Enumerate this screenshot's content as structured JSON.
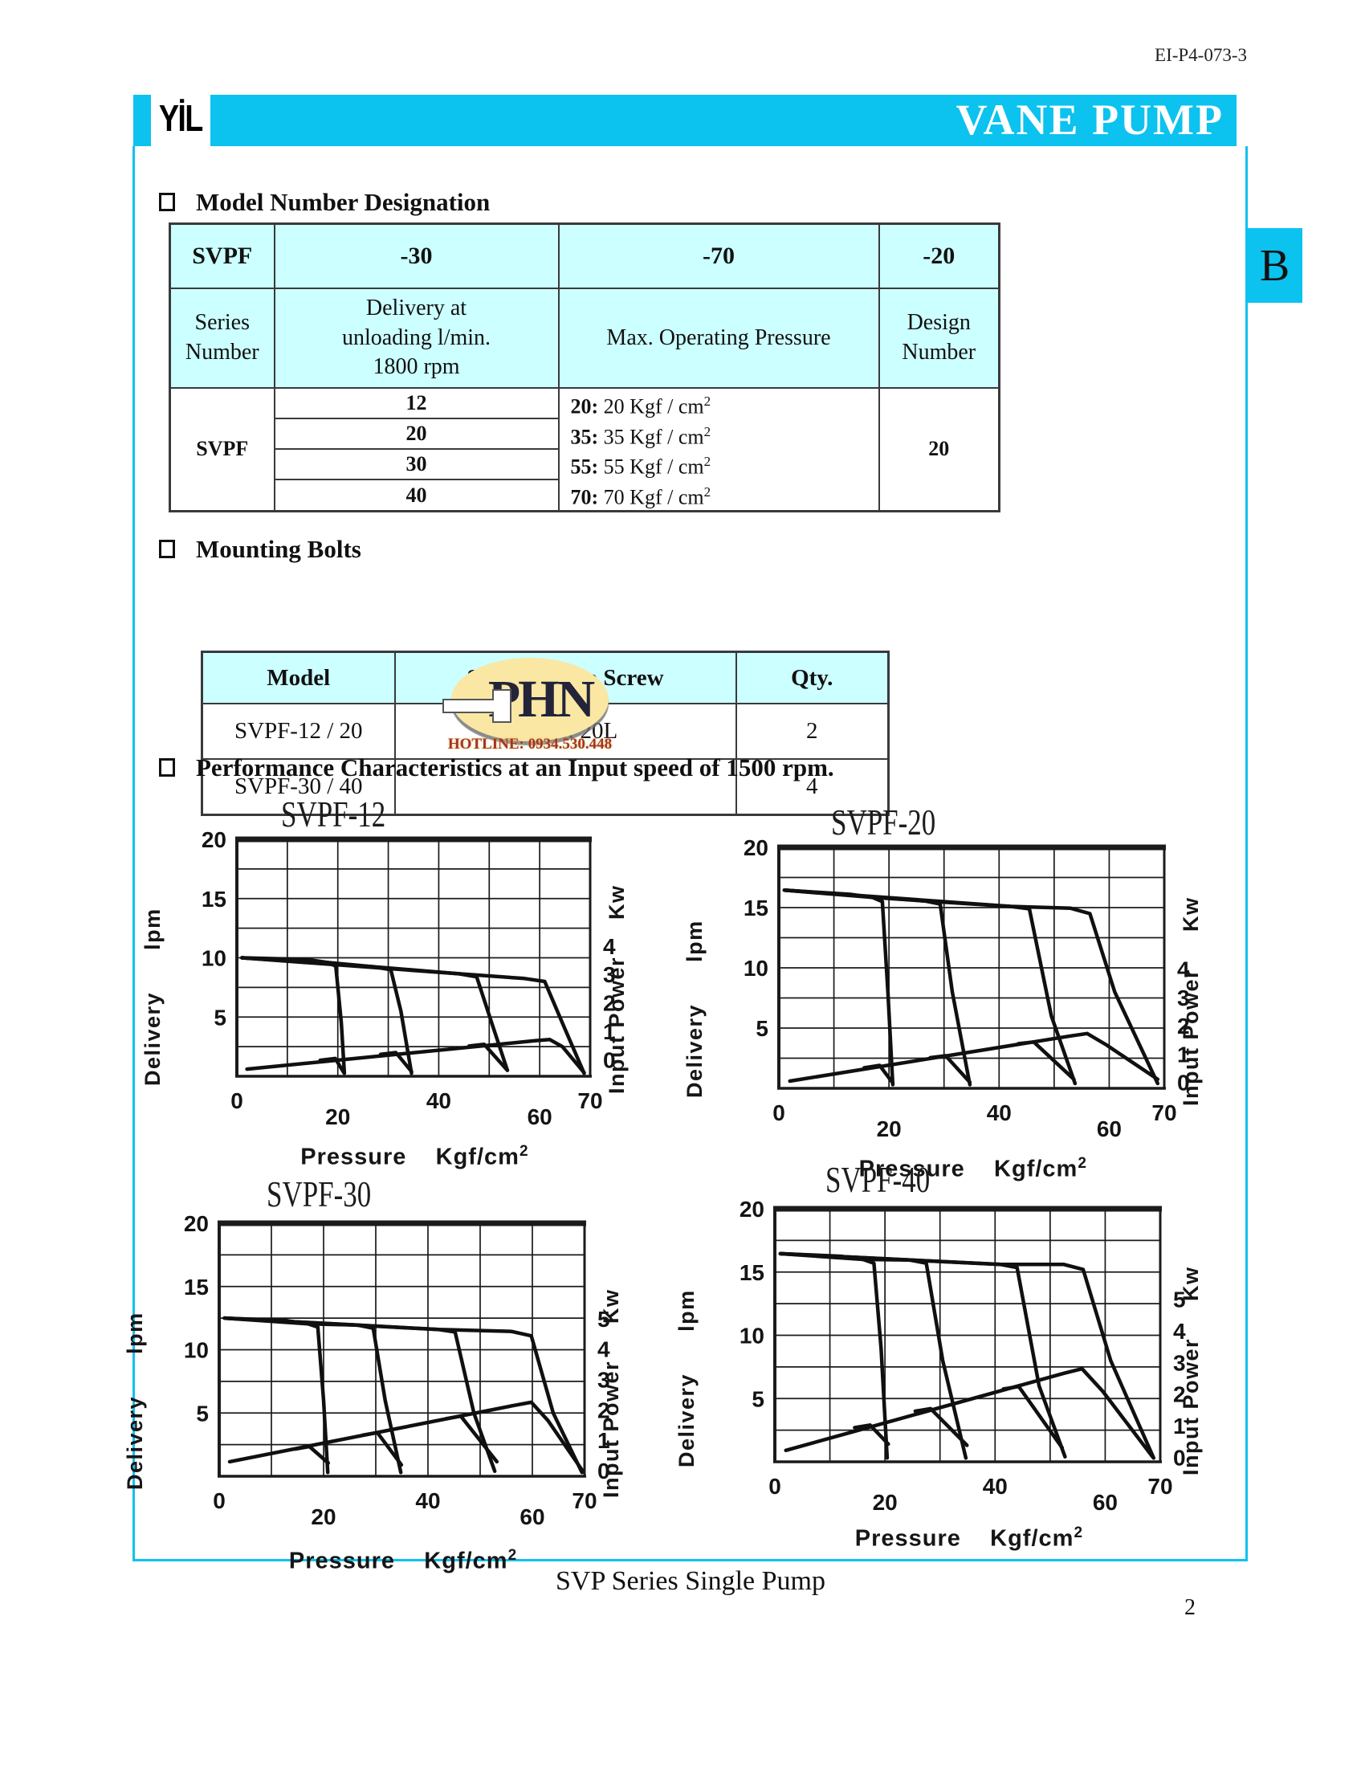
{
  "page": {
    "doc_number": "EI-P4-073-3",
    "banner_title": "VANE PUMP",
    "logo_text": "YİL",
    "tab_label": "B",
    "footer_title": "SVP Series Single Pump",
    "page_number": "2"
  },
  "colors": {
    "accent_cyan": "#0cc2ee",
    "table_header_bg": "#ccffff",
    "watermark_fill": "#f9e7a3",
    "watermark_text": "#23233a",
    "hotline_red": "#a33327"
  },
  "sections": {
    "model_heading": "Model Number Designation",
    "bolts_heading": "Mounting Bolts",
    "performance_heading": "Performance Characteristics at an Input speed of 1500 rpm."
  },
  "model_table": {
    "header_row": {
      "c0": "SVPF",
      "c1": "-30",
      "c2": "-70",
      "c3": "-20"
    },
    "label_row": {
      "c0_l1": "Series",
      "c0_l2": "Number",
      "c1_l1": "Delivery at",
      "c1_l2": "unloading l/min.",
      "c1_l3": "1800 rpm",
      "c2": "Max. Operating Pressure",
      "c3_l1": "Design",
      "c3_l2": "Number"
    },
    "series_label": "SVPF",
    "deliveries": [
      "12",
      "20",
      "30",
      "40"
    ],
    "pressures": [
      {
        "bold": "20:",
        "rest": " 20 Kgf / cm",
        "sup": "2"
      },
      {
        "bold": "35:",
        "rest": " 35 Kgf / cm",
        "sup": "2"
      },
      {
        "bold": "55:",
        "rest": " 55 Kgf / cm",
        "sup": "2"
      },
      {
        "bold": "70:",
        "rest": " 70 Kgf / cm",
        "sup": "2"
      }
    ],
    "design_number": "20"
  },
  "bolt_table": {
    "headers": [
      "Model",
      "Soc. Hd. Cap Screw",
      "Qty."
    ],
    "rows": [
      [
        "SVPF-12 / 20",
        "M10 x 20L",
        "2"
      ],
      [
        "SVPF-30 / 40",
        "",
        "4"
      ]
    ]
  },
  "watermark": {
    "text": "PHN",
    "hotline": "HOTLINE: 0934.530.448"
  },
  "chart_data": [
    {
      "type": "line",
      "title": "SVPF-12",
      "xlabel": "Pressure",
      "xlabel_unit": "Kgf/cm",
      "xlabel_sup": "2",
      "ylabel_left": "Delivery",
      "ylabel_left_unit": "lpm",
      "ylabel_right": "Input Power",
      "ylabel_right_unit": "Kw",
      "xlim": [
        0,
        70
      ],
      "ylim": [
        0,
        20
      ],
      "grid_x": 10,
      "grid_y": 2.5,
      "xticks": [
        {
          "v": 0
        },
        {
          "v": 20,
          "stagger": 1
        },
        {
          "v": 40
        },
        {
          "v": 60,
          "stagger": 1
        },
        {
          "v": 70
        }
      ],
      "yticks_left": [
        5,
        10,
        15,
        20
      ],
      "right_axis": {
        "unit": "Kw",
        "ticks": [
          4,
          3,
          2,
          1,
          0
        ],
        "base_lpm": 1.4,
        "lpm_per_unit": 2.4
      },
      "delivery_curves": [
        {
          "name": "rated-20",
          "points": [
            [
              1,
              10
            ],
            [
              14,
              9.85
            ],
            [
              18,
              9.6
            ],
            [
              19.6,
              9.3
            ],
            [
              20.7,
              4.5
            ],
            [
              21.3,
              0.25
            ]
          ]
        },
        {
          "name": "rated-35",
          "points": [
            [
              1,
              10
            ],
            [
              18,
              9.6
            ],
            [
              27,
              9.25
            ],
            [
              30.5,
              9.0
            ],
            [
              32.5,
              5.5
            ],
            [
              34.6,
              0.25
            ]
          ]
        },
        {
          "name": "rated-55",
          "points": [
            [
              1,
              10
            ],
            [
              27,
              9.25
            ],
            [
              44,
              8.65
            ],
            [
              47.5,
              8.4
            ],
            [
              50.5,
              4.5
            ],
            [
              53.6,
              0.5
            ]
          ]
        },
        {
          "name": "rated-70",
          "points": [
            [
              1,
              10
            ],
            [
              44,
              8.65
            ],
            [
              57,
              8.25
            ],
            [
              61,
              8.0
            ],
            [
              64.5,
              4.5
            ],
            [
              68.8,
              0.25
            ]
          ]
        }
      ],
      "power_curves": [
        {
          "name": "power-main",
          "points": [
            [
              2,
              0.6
            ],
            [
              59,
              3.0
            ],
            [
              62,
              3.1
            ],
            [
              64.5,
              2.5
            ],
            [
              68.8,
              0.3
            ]
          ]
        },
        {
          "name": "power-spur-20",
          "points": [
            [
              16.5,
              1.35
            ],
            [
              19.5,
              1.5
            ],
            [
              21.2,
              0.3
            ]
          ]
        },
        {
          "name": "power-spur-35",
          "points": [
            [
              28.5,
              1.85
            ],
            [
              31.5,
              2.0
            ],
            [
              34.6,
              0.4
            ]
          ]
        },
        {
          "name": "power-spur-55",
          "points": [
            [
              46,
              2.55
            ],
            [
              49,
              2.7
            ],
            [
              53.6,
              0.5
            ]
          ]
        }
      ]
    },
    {
      "type": "line",
      "title": "SVPF-20",
      "xlabel": "Pressure",
      "xlabel_unit": "Kgf/cm",
      "xlabel_sup": "2",
      "ylabel_left": "Delivery",
      "ylabel_left_unit": "lpm",
      "ylabel_right": "Input Power",
      "ylabel_right_unit": "Kw",
      "xlim": [
        0,
        70
      ],
      "ylim": [
        0,
        20
      ],
      "grid_x": 10,
      "grid_y": 2.5,
      "xticks": [
        {
          "v": 0
        },
        {
          "v": 20,
          "stagger": 1
        },
        {
          "v": 40
        },
        {
          "v": 60,
          "stagger": 1
        },
        {
          "v": 70
        }
      ],
      "yticks_left": [
        5,
        10,
        15,
        20
      ],
      "right_axis": {
        "unit": "Kw",
        "ticks": [
          4,
          3,
          2,
          1,
          0
        ],
        "base_lpm": 0.5,
        "lpm_per_unit": 2.35
      },
      "delivery_curves": [
        {
          "name": "rated-20",
          "points": [
            [
              1,
              16.45
            ],
            [
              13,
              16.1
            ],
            [
              17,
              15.85
            ],
            [
              18.8,
              15.5
            ],
            [
              19.8,
              8
            ],
            [
              20.7,
              0.3
            ]
          ]
        },
        {
          "name": "rated-35",
          "points": [
            [
              1,
              16.45
            ],
            [
              17,
              15.85
            ],
            [
              26.5,
              15.55
            ],
            [
              29.3,
              15.3
            ],
            [
              31.5,
              8
            ],
            [
              34.7,
              0.3
            ]
          ]
        },
        {
          "name": "rated-55",
          "points": [
            [
              1,
              16.45
            ],
            [
              26.5,
              15.55
            ],
            [
              42,
              15.1
            ],
            [
              45.5,
              14.9
            ],
            [
              49.5,
              6
            ],
            [
              53.8,
              0.4
            ]
          ]
        },
        {
          "name": "rated-70",
          "points": [
            [
              1,
              16.45
            ],
            [
              42,
              15.1
            ],
            [
              53,
              14.95
            ],
            [
              56.5,
              14.5
            ],
            [
              61,
              8
            ],
            [
              68.8,
              0.4
            ]
          ]
        }
      ],
      "power_curves": [
        {
          "name": "power-main",
          "points": [
            [
              2,
              0.6
            ],
            [
              53,
              4.35
            ],
            [
              56,
              4.55
            ],
            [
              59.5,
              3.6
            ],
            [
              68.8,
              0.75
            ]
          ]
        },
        {
          "name": "power-spur-20",
          "points": [
            [
              15.5,
              1.7
            ],
            [
              18.3,
              1.9
            ],
            [
              20.7,
              0.45
            ]
          ]
        },
        {
          "name": "power-spur-35",
          "points": [
            [
              27.5,
              2.55
            ],
            [
              30.3,
              2.7
            ],
            [
              34.7,
              0.5
            ]
          ]
        },
        {
          "name": "power-spur-55",
          "points": [
            [
              43.5,
              3.7
            ],
            [
              46.3,
              3.85
            ],
            [
              53.6,
              0.75
            ]
          ]
        }
      ]
    },
    {
      "type": "line",
      "title": "SVPF-30",
      "xlabel": "Pressure",
      "xlabel_unit": "Kgf/cm",
      "xlabel_sup": "2",
      "ylabel_left": "Delivery",
      "ylabel_left_unit": "lpm",
      "ylabel_right": "Input Power",
      "ylabel_right_unit": "Kw",
      "xlim": [
        0,
        70
      ],
      "ylim": [
        0,
        20
      ],
      "grid_x": 10,
      "grid_y": 2.5,
      "xticks": [
        {
          "v": 0
        },
        {
          "v": 20,
          "stagger": 1
        },
        {
          "v": 40
        },
        {
          "v": 60,
          "stagger": 1
        },
        {
          "v": 70
        }
      ],
      "yticks_left": [
        5,
        10,
        15,
        20
      ],
      "right_axis": {
        "unit": "Kw",
        "ticks": [
          5,
          4,
          3,
          2,
          1,
          0
        ],
        "base_lpm": 0.45,
        "lpm_per_unit": 2.4
      },
      "delivery_curves": [
        {
          "name": "rated-20",
          "points": [
            [
              1,
              12.5
            ],
            [
              13,
              12.3
            ],
            [
              17,
              12.05
            ],
            [
              18.9,
              11.8
            ],
            [
              20,
              6
            ],
            [
              20.8,
              0.3
            ]
          ]
        },
        {
          "name": "rated-35",
          "points": [
            [
              1,
              12.5
            ],
            [
              17,
              12.05
            ],
            [
              26.5,
              11.95
            ],
            [
              29.5,
              11.7
            ],
            [
              31.8,
              6
            ],
            [
              34.8,
              0.3
            ]
          ]
        },
        {
          "name": "rated-55",
          "points": [
            [
              1,
              12.5
            ],
            [
              26.5,
              11.95
            ],
            [
              42,
              11.6
            ],
            [
              45.2,
              11.4
            ],
            [
              48.8,
              5
            ],
            [
              52.8,
              0.4
            ]
          ]
        },
        {
          "name": "rated-70",
          "points": [
            [
              1,
              12.5
            ],
            [
              42,
              11.6
            ],
            [
              56,
              11.45
            ],
            [
              59.8,
              11.1
            ],
            [
              64,
              5
            ],
            [
              69.5,
              0.3
            ]
          ]
        }
      ],
      "power_curves": [
        {
          "name": "power-main",
          "points": [
            [
              2,
              1.15
            ],
            [
              56.5,
              5.6
            ],
            [
              59.8,
              5.85
            ],
            [
              63,
              4.4
            ],
            [
              69.5,
              0.5
            ]
          ]
        },
        {
          "name": "power-spur-20",
          "points": [
            [
              14.5,
              2.15
            ],
            [
              17.3,
              2.35
            ],
            [
              20.9,
              1.05
            ]
          ]
        },
        {
          "name": "power-spur-35",
          "points": [
            [
              27.5,
              3.25
            ],
            [
              30.3,
              3.45
            ],
            [
              34.9,
              0.9
            ]
          ]
        },
        {
          "name": "power-spur-55",
          "points": [
            [
              43.5,
              4.55
            ],
            [
              46.3,
              4.75
            ],
            [
              53.2,
              1.15
            ]
          ]
        }
      ]
    },
    {
      "type": "line",
      "title": "SVPF-40",
      "xlabel": "Pressure",
      "xlabel_unit": "Kgf/cm",
      "xlabel_sup": "2",
      "ylabel_left": "Delivery",
      "ylabel_left_unit": "lpm",
      "ylabel_right": "Input Power",
      "ylabel_right_unit": "Kw",
      "xlim": [
        0,
        70
      ],
      "ylim": [
        0,
        20
      ],
      "grid_x": 10,
      "grid_y": 2.5,
      "xticks": [
        {
          "v": 0
        },
        {
          "v": 20,
          "stagger": 1
        },
        {
          "v": 40
        },
        {
          "v": 60,
          "stagger": 1
        },
        {
          "v": 70
        }
      ],
      "yticks_left": [
        5,
        10,
        15,
        20
      ],
      "right_axis": {
        "unit": "Kw",
        "ticks": [
          5,
          4,
          3,
          2,
          1,
          0
        ],
        "base_lpm": 0.35,
        "lpm_per_unit": 2.5
      },
      "delivery_curves": [
        {
          "name": "rated-20",
          "points": [
            [
              1,
              16.45
            ],
            [
              12,
              16.25
            ],
            [
              16,
              16.0
            ],
            [
              18,
              15.7
            ],
            [
              19.3,
              9
            ],
            [
              20.4,
              0.3
            ]
          ]
        },
        {
          "name": "rated-35",
          "points": [
            [
              1,
              16.45
            ],
            [
              16,
              16.0
            ],
            [
              24.5,
              15.95
            ],
            [
              27.5,
              15.7
            ],
            [
              30.5,
              8
            ],
            [
              34.7,
              0.3
            ]
          ]
        },
        {
          "name": "rated-55",
          "points": [
            [
              1,
              16.45
            ],
            [
              24.5,
              15.95
            ],
            [
              41,
              15.6
            ],
            [
              44,
              15.35
            ],
            [
              48,
              6
            ],
            [
              52.7,
              0.4
            ]
          ]
        },
        {
          "name": "rated-70",
          "points": [
            [
              1,
              16.45
            ],
            [
              41,
              15.6
            ],
            [
              52.5,
              15.6
            ],
            [
              56,
              15.2
            ],
            [
              61,
              8
            ],
            [
              68.8,
              0.3
            ]
          ]
        }
      ],
      "power_curves": [
        {
          "name": "power-main",
          "points": [
            [
              2,
              0.9
            ],
            [
              52.5,
              7.0
            ],
            [
              55.8,
              7.35
            ],
            [
              59.5,
              5.6
            ],
            [
              68.6,
              0.4
            ]
          ]
        },
        {
          "name": "power-spur-20",
          "points": [
            [
              14.5,
              2.7
            ],
            [
              17.3,
              2.9
            ],
            [
              20.6,
              1.4
            ]
          ]
        },
        {
          "name": "power-spur-35",
          "points": [
            [
              25.5,
              4.0
            ],
            [
              28.3,
              4.2
            ],
            [
              34.9,
              1.3
            ]
          ]
        },
        {
          "name": "power-spur-55",
          "points": [
            [
              41.5,
              5.75
            ],
            [
              44.3,
              5.95
            ],
            [
              52.2,
              1.1
            ]
          ]
        }
      ]
    }
  ]
}
